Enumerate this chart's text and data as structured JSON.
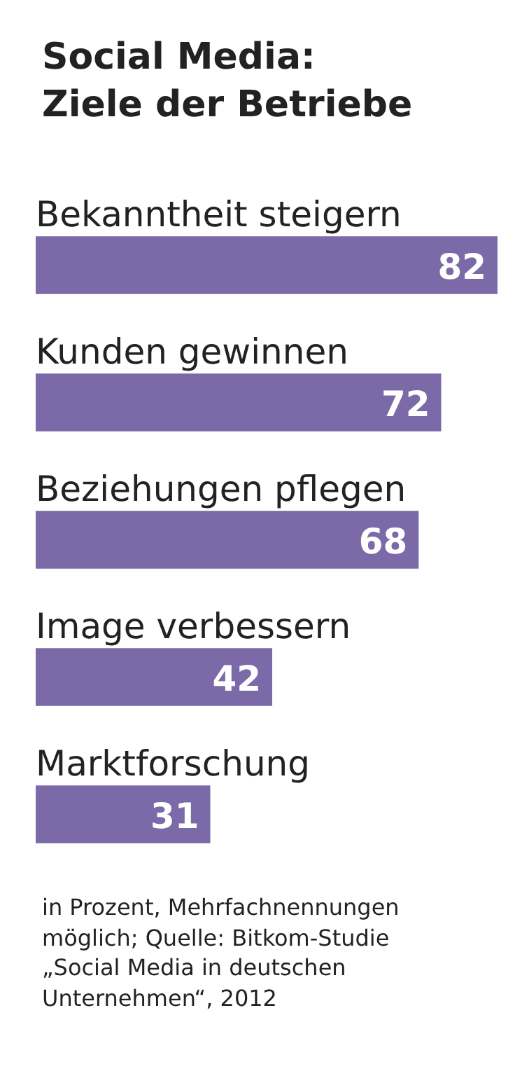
{
  "chart_data": {
    "type": "bar",
    "orientation": "horizontal",
    "title": "Social Media: Ziele der Betriebe",
    "categories": [
      "Bekanntheit steigern",
      "Kunden gewinnen",
      "Beziehungen pflegen",
      "Image verbessern",
      "Marktforschung"
    ],
    "values": [
      82,
      72,
      68,
      42,
      31
    ],
    "color": "#7b6aa7",
    "data_labels": true,
    "annotations": [
      "in Prozent, Mehrfachnennungen möglich; Quelle: Bitkom-Studie „Social Media in deutschen Unternehmen“, 2012"
    ]
  }
}
